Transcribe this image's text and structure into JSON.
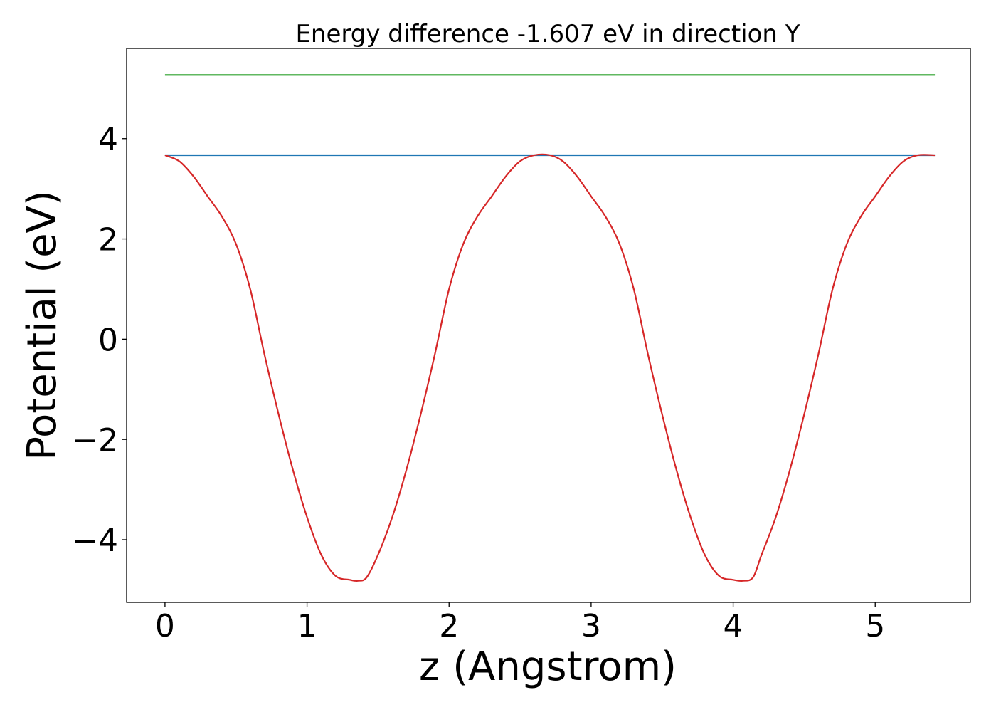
{
  "chart_data": {
    "type": "line",
    "title": "Energy difference -1.607 eV in direction Y",
    "xlabel": "z (Angstrom)",
    "ylabel": "Potential (eV)",
    "xlim": [
      -0.27,
      5.67
    ],
    "ylim": [
      -5.25,
      5.8
    ],
    "xticks": [
      0,
      1,
      2,
      3,
      4,
      5
    ],
    "yticks": [
      -4,
      -2,
      0,
      2,
      4
    ],
    "ytick_labels": [
      "−4",
      "−2",
      "0",
      "2",
      "4"
    ],
    "grid": false,
    "legend": "none",
    "series": [
      {
        "color": "#2ca02c",
        "x": [
          0,
          5.42
        ],
        "y": [
          5.27,
          5.27
        ]
      },
      {
        "color": "#1f77b4",
        "x": [
          0,
          5.42
        ],
        "y": [
          3.67,
          3.67
        ]
      },
      {
        "color": "#d62728",
        "x": [
          0,
          0.1,
          0.2,
          0.3,
          0.4,
          0.5,
          0.6,
          0.7,
          0.8,
          0.9,
          1.0,
          1.1,
          1.2,
          1.3,
          1.36,
          1.42,
          1.5,
          1.6,
          1.7,
          1.8,
          1.9,
          2.0,
          2.1,
          2.2,
          2.3,
          2.4,
          2.5,
          2.6,
          2.71,
          2.8,
          2.9,
          3.0,
          3.1,
          3.2,
          3.3,
          3.4,
          3.5,
          3.6,
          3.7,
          3.8,
          3.9,
          4.0,
          4.07,
          4.14,
          4.2,
          4.3,
          4.4,
          4.5,
          4.6,
          4.7,
          4.8,
          4.9,
          5.0,
          5.1,
          5.2,
          5.3,
          5.42
        ],
        "y": [
          3.67,
          3.55,
          3.25,
          2.85,
          2.45,
          1.9,
          1.0,
          -0.3,
          -1.5,
          -2.6,
          -3.55,
          -4.3,
          -4.72,
          -4.8,
          -4.82,
          -4.75,
          -4.3,
          -3.55,
          -2.6,
          -1.5,
          -0.3,
          1.0,
          1.9,
          2.45,
          2.85,
          3.25,
          3.55,
          3.67,
          3.67,
          3.55,
          3.25,
          2.85,
          2.45,
          1.9,
          1.0,
          -0.3,
          -1.5,
          -2.6,
          -3.55,
          -4.3,
          -4.72,
          -4.8,
          -4.82,
          -4.75,
          -4.3,
          -3.55,
          -2.6,
          -1.5,
          -0.3,
          1.0,
          1.9,
          2.45,
          2.85,
          3.25,
          3.55,
          3.67,
          3.67
        ]
      }
    ]
  }
}
